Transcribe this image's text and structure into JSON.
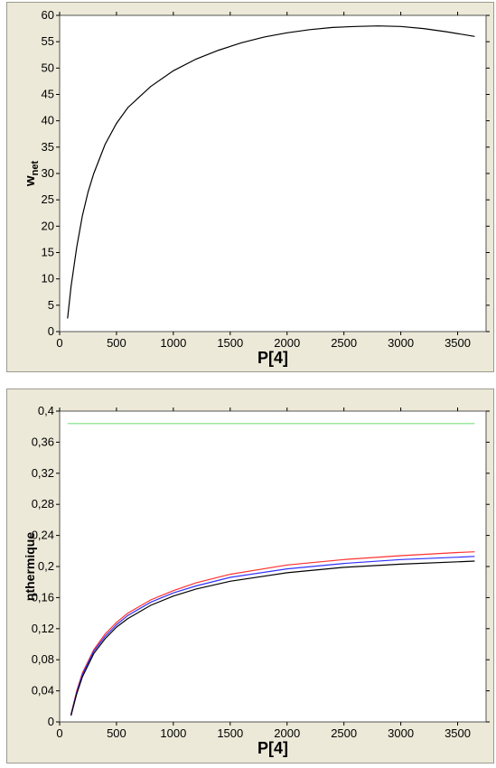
{
  "chart_data": [
    {
      "type": "line",
      "title": "",
      "xlabel": "P[4]",
      "ylabel": "w",
      "ylabel_subscript": "net",
      "xlim": [
        0,
        3750
      ],
      "ylim": [
        0,
        60
      ],
      "grid": false,
      "x_ticks": [
        "0",
        "500",
        "1000",
        "1500",
        "2000",
        "2500",
        "3000",
        "3500"
      ],
      "y_ticks": [
        "0",
        "5",
        "10",
        "15",
        "20",
        "25",
        "30",
        "35",
        "40",
        "45",
        "50",
        "55",
        "60"
      ],
      "series": [
        {
          "color": "#000000",
          "x": [
            70,
            100,
            150,
            200,
            250,
            300,
            400,
            500,
            600,
            700,
            800,
            1000,
            1200,
            1400,
            1600,
            1800,
            2000,
            2200,
            2400,
            2600,
            2800,
            3000,
            3200,
            3400,
            3650
          ],
          "y": [
            2.5,
            8.5,
            16,
            22,
            26.5,
            30,
            35.5,
            39.5,
            42.5,
            44.5,
            46.5,
            49.5,
            51.7,
            53.4,
            54.8,
            55.9,
            56.7,
            57.3,
            57.7,
            57.9,
            58.0,
            57.9,
            57.5,
            56.9,
            56.0
          ]
        }
      ]
    },
    {
      "type": "line",
      "title": "",
      "xlabel": "P[4]",
      "ylabel": "ηthermique",
      "xlim": [
        0,
        3750
      ],
      "ylim": [
        0,
        0.4
      ],
      "grid": false,
      "x_ticks": [
        "0",
        "500",
        "1000",
        "1500",
        "2000",
        "2500",
        "3000",
        "3500"
      ],
      "y_ticks": [
        "0",
        "0,04",
        "0,08",
        "0,12",
        "0,16",
        "0,2",
        "0,24",
        "0,28",
        "0,32",
        "0,36",
        "0,4"
      ],
      "series": [
        {
          "color": "#7fe07f",
          "x": [
            70,
            3650
          ],
          "y": [
            0.384,
            0.384
          ]
        },
        {
          "color": "#ff3030",
          "x": [
            100,
            150,
            200,
            300,
            400,
            500,
            600,
            800,
            1000,
            1200,
            1500,
            2000,
            2500,
            3000,
            3500,
            3650
          ],
          "y": [
            0.01,
            0.04,
            0.063,
            0.093,
            0.113,
            0.128,
            0.14,
            0.157,
            0.169,
            0.179,
            0.19,
            0.202,
            0.209,
            0.214,
            0.218,
            0.219
          ]
        },
        {
          "color": "#3030ff",
          "x": [
            100,
            150,
            200,
            300,
            400,
            500,
            600,
            800,
            1000,
            1200,
            1500,
            2000,
            2500,
            3000,
            3500,
            3650
          ],
          "y": [
            0.009,
            0.038,
            0.061,
            0.091,
            0.11,
            0.125,
            0.137,
            0.154,
            0.166,
            0.175,
            0.186,
            0.197,
            0.204,
            0.209,
            0.212,
            0.213
          ]
        },
        {
          "color": "#000000",
          "x": [
            100,
            150,
            200,
            300,
            400,
            500,
            600,
            800,
            1000,
            1200,
            1500,
            2000,
            2500,
            3000,
            3500,
            3650
          ],
          "y": [
            0.008,
            0.036,
            0.058,
            0.088,
            0.107,
            0.122,
            0.133,
            0.15,
            0.162,
            0.171,
            0.181,
            0.192,
            0.199,
            0.203,
            0.206,
            0.207
          ]
        }
      ]
    }
  ]
}
